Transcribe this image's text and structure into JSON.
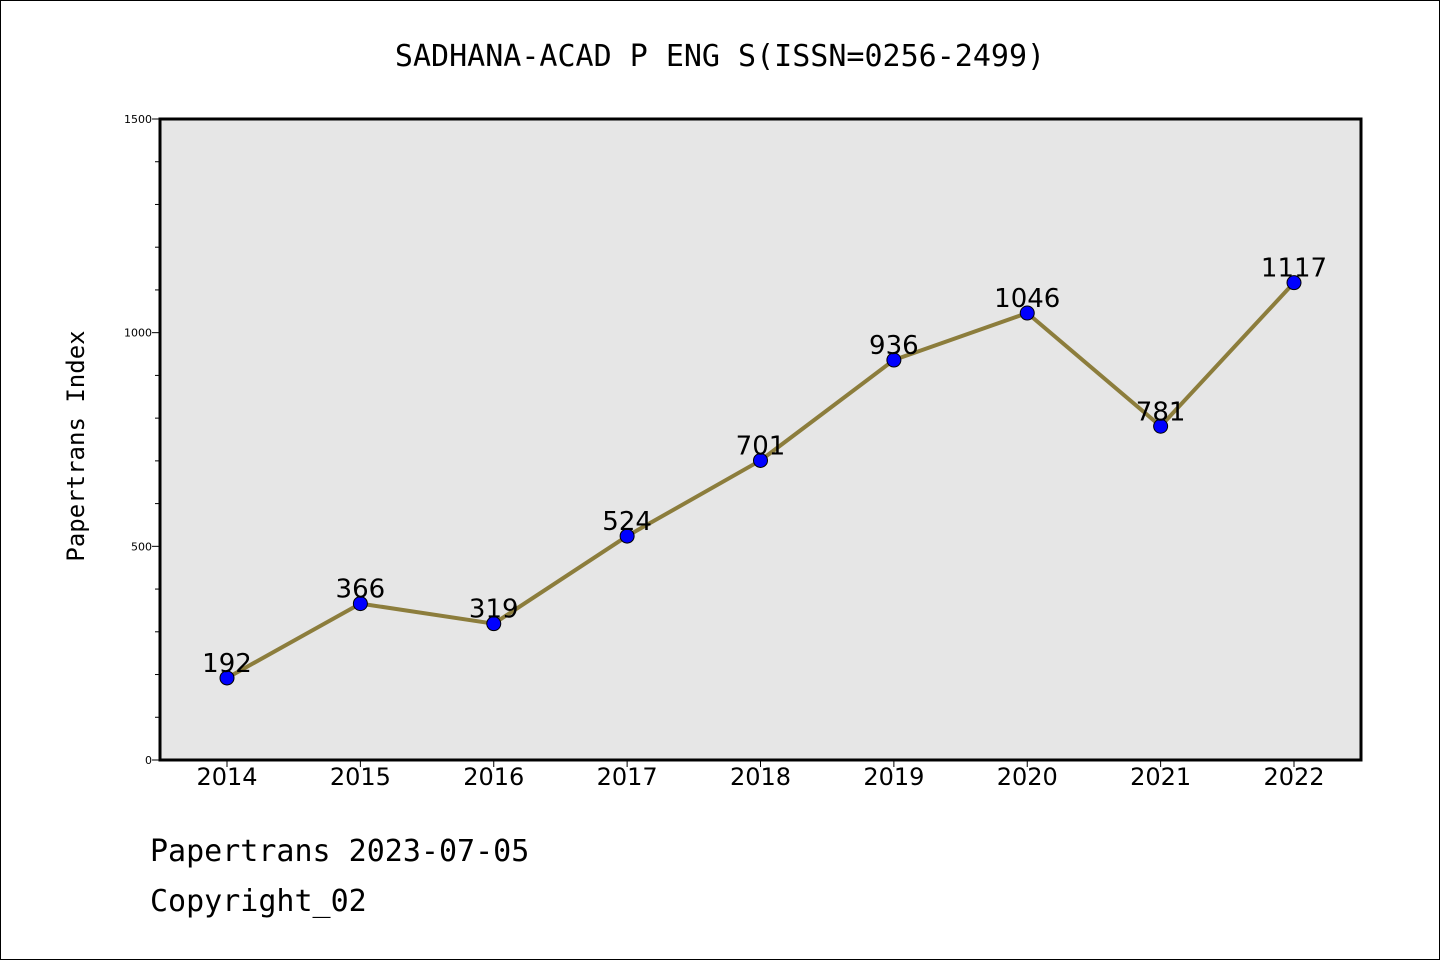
{
  "chart_data": {
    "type": "line",
    "title": "SADHANA-ACAD P ENG S(ISSN=0256-2499)",
    "xlabel": "",
    "ylabel": "Papertrans Index",
    "categories": [
      "2014",
      "2015",
      "2016",
      "2017",
      "2018",
      "2019",
      "2020",
      "2021",
      "2022"
    ],
    "series": [
      {
        "values": [
          192,
          366,
          319,
          524,
          701,
          936,
          1046,
          781,
          1117
        ]
      }
    ],
    "ylim": [
      0,
      1500
    ],
    "yticks": [
      0,
      500,
      1000,
      1500
    ],
    "grid": false,
    "legend": "none",
    "colors": {
      "line": "#8C7D3C",
      "marker": "#0000FF",
      "plot_background": "#E6E6E6",
      "frame": "#000000"
    }
  },
  "footer": {
    "line1": "Papertrans 2023-07-05",
    "line2": "Copyright_02"
  }
}
